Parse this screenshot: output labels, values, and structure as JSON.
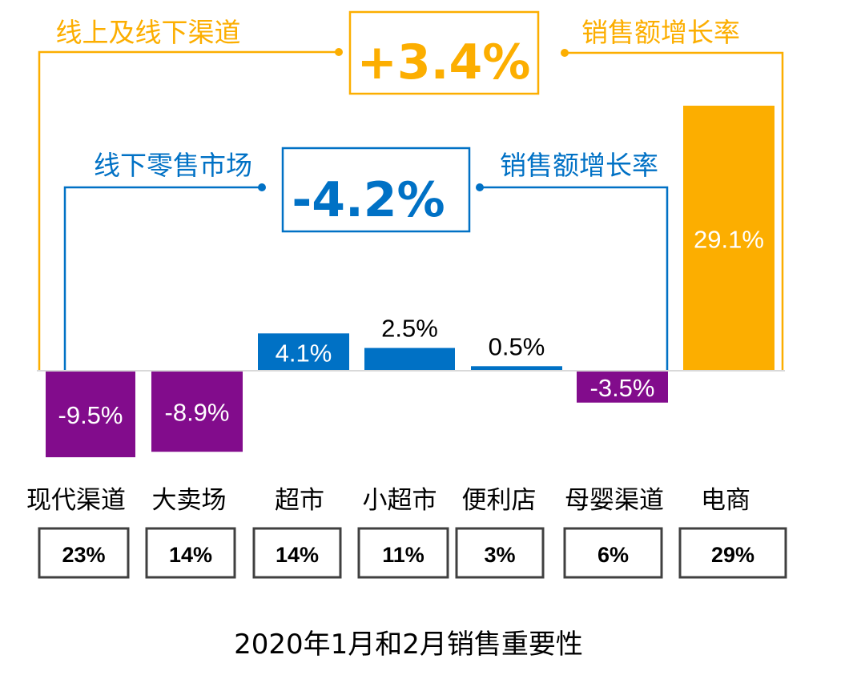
{
  "colors": {
    "negative": "#820c8c",
    "positive": "#0071c5",
    "ecommerce": "#fcae00",
    "offline_annotation": "#0071c5",
    "total_annotation": "#fcae00",
    "share_box_border": "#404040"
  },
  "annotations": {
    "total_left": "线上及线下渠道",
    "total_value": "+3.4%",
    "total_right": "销售额增长率",
    "offline_left": "线下零售市场",
    "offline_value": "-4.2%",
    "offline_right": "销售额增长率"
  },
  "footer_title": "2020年1月和2月销售重要性",
  "chart_data": {
    "type": "bar",
    "title": "",
    "categories": [
      "现代渠道",
      "大卖场",
      "超市",
      "小超市",
      "便利店",
      "母婴渠道",
      "电商"
    ],
    "series": [
      {
        "name": "",
        "values": [
          -9.5,
          -8.9,
          4.1,
          2.5,
          0.5,
          -3.5,
          29.1
        ],
        "labels": [
          "-9.5%",
          "-8.9%",
          "4.1%",
          "2.5%",
          "0.5%",
          "-3.5%",
          "29.1%"
        ]
      }
    ],
    "shares": [
      "23%",
      "14%",
      "14%",
      "11%",
      "3%",
      "6%",
      "29%"
    ],
    "bar_color_groups": [
      "negative",
      "negative",
      "positive",
      "positive",
      "positive",
      "negative",
      "ecommerce"
    ],
    "label_position": [
      "inside",
      "inside",
      "inside",
      "above",
      "above",
      "inside",
      "inside"
    ],
    "label_color": [
      "#ffffff",
      "#ffffff",
      "#ffffff",
      "#000000",
      "#000000",
      "#ffffff",
      "#ffffff"
    ],
    "ylim": [
      -10,
      29.1
    ],
    "grid": false,
    "legend": "none"
  }
}
